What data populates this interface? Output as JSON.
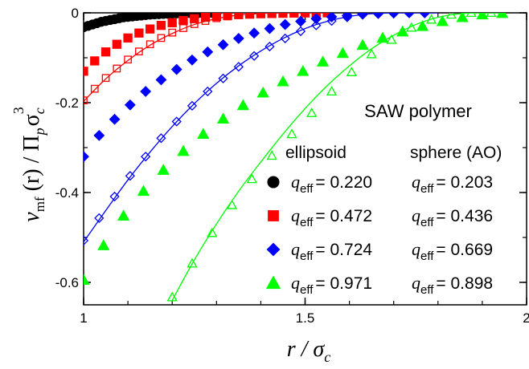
{
  "chart_data": {
    "type": "scatter",
    "title": "SAW polymer",
    "xlabel": {
      "main": "r / σ",
      "sub": "c"
    },
    "ylabel": {
      "v": "v",
      "v_sub": "mf",
      "mid": " (r) / Π",
      "p_sub": "p",
      "sigma": "σ",
      "c_sub": "c",
      "sup": "3"
    },
    "xlim": [
      1.0,
      2.0
    ],
    "ylim": [
      -0.65,
      0.0
    ],
    "xticks": [
      1,
      1.5,
      2
    ],
    "xtick_labels": [
      "1",
      "1.5",
      "2"
    ],
    "yticks": [
      0,
      -0.2,
      -0.4,
      -0.6
    ],
    "ytick_labels": [
      "0",
      "-0.2",
      "-0.4",
      "-0.6"
    ],
    "legend_headers": {
      "ellipsoid": "ellipsoid",
      "sphere": "sphere (AO)"
    },
    "q_symbol": "q",
    "q_subscript": "eff",
    "series": [
      {
        "color": "#000000",
        "marker": "circle",
        "q_ellipsoid": "0.220",
        "q_sphere": "0.203",
        "ellipsoid": {
          "x": [
            1.0,
            1.01,
            1.02,
            1.03,
            1.04,
            1.05,
            1.06,
            1.07,
            1.08,
            1.09,
            1.1,
            1.11,
            1.12,
            1.13,
            1.14,
            1.15,
            1.16,
            1.17,
            1.18,
            1.19,
            1.2,
            1.21,
            1.22,
            1.23,
            1.24,
            1.25,
            1.26,
            1.27,
            1.28,
            1.29,
            1.3
          ],
          "y": [
            -0.032,
            -0.029,
            -0.026,
            -0.023,
            -0.02,
            -0.018,
            -0.016,
            -0.014,
            -0.012,
            -0.01,
            -0.009,
            -0.008,
            -0.007,
            -0.006,
            -0.005,
            -0.004,
            -0.0035,
            -0.003,
            -0.0025,
            -0.002,
            -0.0015,
            -0.0012,
            -0.001,
            -0.0008,
            -0.0006,
            -0.0004,
            -0.0003,
            -0.0002,
            -0.0001,
            0,
            0
          ]
        },
        "sphere": {
          "x": [],
          "y": []
        },
        "curve": []
      },
      {
        "color": "#ff0000",
        "marker": "square",
        "q_ellipsoid": "0.472",
        "q_sphere": "0.436",
        "ellipsoid": {
          "x": [
            1.0,
            1.025,
            1.05,
            1.075,
            1.1,
            1.125,
            1.15,
            1.175,
            1.2,
            1.225,
            1.25,
            1.275,
            1.3,
            1.325,
            1.35,
            1.375,
            1.4,
            1.425,
            1.45,
            1.475,
            1.5,
            1.525,
            1.55
          ],
          "y": [
            -0.13,
            -0.107,
            -0.087,
            -0.07,
            -0.056,
            -0.045,
            -0.036,
            -0.028,
            -0.022,
            -0.017,
            -0.013,
            -0.01,
            -0.008,
            -0.006,
            -0.004,
            -0.003,
            -0.002,
            -0.0015,
            -0.001,
            -0.0005,
            -0.0002,
            0,
            0
          ]
        },
        "sphere": {
          "x": [
            1.0,
            1.025,
            1.05,
            1.075,
            1.1,
            1.125,
            1.15,
            1.175,
            1.2,
            1.225,
            1.25,
            1.275,
            1.3,
            1.325,
            1.35,
            1.375,
            1.4,
            1.425,
            1.45,
            1.475,
            1.5,
            1.525,
            1.55
          ],
          "y": [
            -0.195,
            -0.169,
            -0.145,
            -0.124,
            -0.104,
            -0.086,
            -0.07,
            -0.056,
            -0.044,
            -0.034,
            -0.025,
            -0.018,
            -0.012,
            -0.008,
            -0.005,
            -0.003,
            -0.0015,
            -0.0007,
            -0.0002,
            0,
            0,
            0,
            0
          ]
        },
        "curve": [
          [
            1.0,
            -0.197
          ],
          [
            1.05,
            -0.147
          ],
          [
            1.1,
            -0.106
          ],
          [
            1.15,
            -0.072
          ],
          [
            1.2,
            -0.046
          ],
          [
            1.25,
            -0.026
          ],
          [
            1.3,
            -0.013
          ],
          [
            1.35,
            -0.005
          ],
          [
            1.4,
            -0.0015
          ],
          [
            1.45,
            -0.0002
          ],
          [
            1.5,
            0
          ],
          [
            1.55,
            0
          ]
        ]
      },
      {
        "color": "#0000ff",
        "marker": "diamond",
        "q_ellipsoid": "0.724",
        "q_sphere": "0.669",
        "ellipsoid": {
          "x": [
            1.0,
            1.035,
            1.07,
            1.105,
            1.14,
            1.175,
            1.21,
            1.245,
            1.28,
            1.315,
            1.35,
            1.385,
            1.42,
            1.455,
            1.49,
            1.525,
            1.56,
            1.595,
            1.63,
            1.665,
            1.7,
            1.735,
            1.77
          ],
          "y": [
            -0.32,
            -0.273,
            -0.237,
            -0.205,
            -0.175,
            -0.149,
            -0.126,
            -0.105,
            -0.087,
            -0.071,
            -0.057,
            -0.045,
            -0.035,
            -0.026,
            -0.019,
            -0.013,
            -0.009,
            -0.006,
            -0.003,
            -0.0015,
            -0.0005,
            0,
            0
          ]
        },
        "sphere": {
          "x": [
            1.0,
            1.035,
            1.07,
            1.105,
            1.14,
            1.175,
            1.21,
            1.245,
            1.28,
            1.315,
            1.35,
            1.385,
            1.42,
            1.455,
            1.49,
            1.525,
            1.56,
            1.595,
            1.63,
            1.665,
            1.7,
            1.735,
            1.77
          ],
          "y": [
            -0.507,
            -0.457,
            -0.409,
            -0.363,
            -0.32,
            -0.279,
            -0.242,
            -0.207,
            -0.175,
            -0.146,
            -0.12,
            -0.096,
            -0.075,
            -0.057,
            -0.041,
            -0.028,
            -0.018,
            -0.01,
            -0.004,
            -0.001,
            0,
            0,
            0
          ]
        },
        "curve": [
          [
            1.0,
            -0.51
          ],
          [
            1.05,
            -0.44
          ],
          [
            1.1,
            -0.372
          ],
          [
            1.15,
            -0.31
          ],
          [
            1.2,
            -0.253
          ],
          [
            1.25,
            -0.202
          ],
          [
            1.3,
            -0.157
          ],
          [
            1.35,
            -0.118
          ],
          [
            1.4,
            -0.085
          ],
          [
            1.45,
            -0.057
          ],
          [
            1.5,
            -0.035
          ],
          [
            1.55,
            -0.019
          ],
          [
            1.6,
            -0.008
          ],
          [
            1.65,
            -0.002
          ],
          [
            1.7,
            0
          ],
          [
            1.75,
            0
          ],
          [
            1.8,
            0
          ]
        ]
      },
      {
        "color": "#00ff00",
        "marker": "triangle",
        "q_ellipsoid": "0.971",
        "q_sphere": "0.898",
        "ellipsoid": {
          "x": [
            1.0,
            1.045,
            1.09,
            1.135,
            1.18,
            1.225,
            1.27,
            1.315,
            1.36,
            1.405,
            1.45,
            1.495,
            1.54,
            1.585,
            1.63,
            1.675,
            1.72,
            1.765,
            1.81,
            1.855,
            1.9,
            1.945
          ],
          "y": [
            -0.595,
            -0.518,
            -0.452,
            -0.397,
            -0.35,
            -0.308,
            -0.27,
            -0.236,
            -0.206,
            -0.178,
            -0.153,
            -0.13,
            -0.109,
            -0.09,
            -0.072,
            -0.056,
            -0.042,
            -0.03,
            -0.019,
            -0.01,
            -0.004,
            -0.001
          ]
        },
        "sphere": {
          "x": [
            1.2,
            1.245,
            1.29,
            1.335,
            1.38,
            1.425,
            1.47,
            1.515,
            1.56,
            1.605,
            1.65,
            1.695,
            1.74,
            1.785,
            1.83,
            1.875,
            1.92
          ],
          "y": [
            -0.633,
            -0.558,
            -0.49,
            -0.428,
            -0.37,
            -0.318,
            -0.27,
            -0.223,
            -0.175,
            -0.132,
            -0.092,
            -0.06,
            -0.033,
            -0.015,
            -0.004,
            0,
            0
          ]
        },
        "curve": [
          [
            1.2,
            -0.64
          ],
          [
            1.25,
            -0.55
          ],
          [
            1.3,
            -0.47
          ],
          [
            1.35,
            -0.397
          ],
          [
            1.4,
            -0.332
          ],
          [
            1.45,
            -0.27
          ],
          [
            1.5,
            -0.213
          ],
          [
            1.55,
            -0.162
          ],
          [
            1.6,
            -0.118
          ],
          [
            1.65,
            -0.08
          ],
          [
            1.7,
            -0.05
          ],
          [
            1.75,
            -0.026
          ],
          [
            1.8,
            -0.01
          ],
          [
            1.85,
            -0.002
          ],
          [
            1.9,
            0
          ],
          [
            1.95,
            0
          ]
        ]
      }
    ]
  }
}
